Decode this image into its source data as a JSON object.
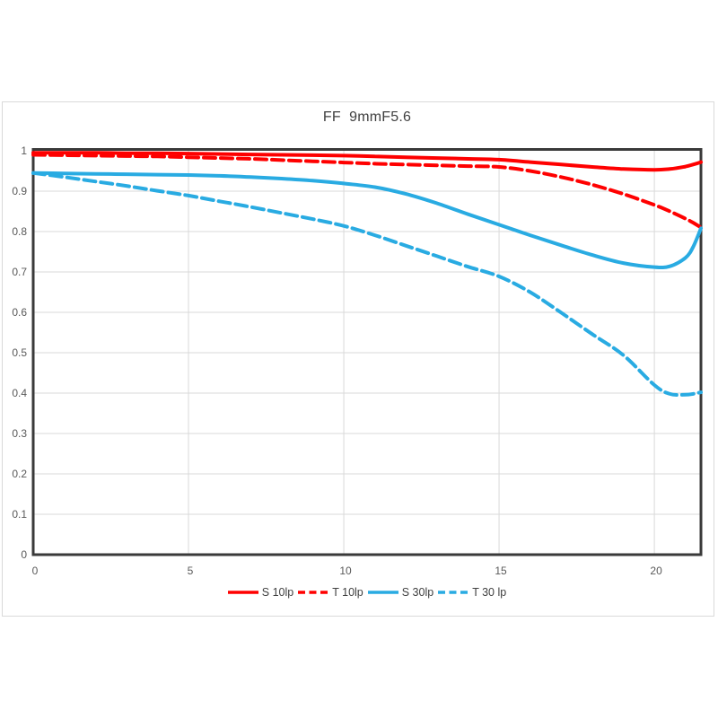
{
  "page": {
    "background": "#ffffff",
    "panel_border_color": "#d9d9d9"
  },
  "chart_data": {
    "type": "line",
    "title": "FF  9mmF5.6",
    "xlabel": "",
    "ylabel": "",
    "xlim": [
      0,
      21.5
    ],
    "ylim": [
      0,
      1
    ],
    "x_ticks": [
      0,
      5,
      10,
      15,
      20
    ],
    "y_ticks": [
      "0",
      "0.1",
      "0.2",
      "0.3",
      "0.4",
      "0.5",
      "0.6",
      "0.7",
      "0.8",
      "0.9",
      "1"
    ],
    "grid": true,
    "legend_position": "bottom",
    "colors": {
      "red": "#ff0000",
      "blue": "#29abe2",
      "axis_border": "#3a3a3a",
      "gridline": "#d9d9d9",
      "tick_label": "#595959",
      "title_text": "#404040"
    },
    "x": [
      0,
      1,
      2,
      3,
      4,
      5,
      6,
      7,
      8,
      9,
      10,
      11,
      12,
      13,
      14,
      15,
      16,
      17,
      18,
      19,
      20,
      20.5,
      21,
      21.25,
      21.5
    ],
    "series": [
      {
        "name": "S 10lp",
        "color": "#ff0000",
        "style": "solid",
        "values": [
          0.995,
          0.995,
          0.995,
          0.994,
          0.994,
          0.993,
          0.992,
          0.991,
          0.99,
          0.989,
          0.988,
          0.986,
          0.984,
          0.982,
          0.98,
          0.978,
          0.972,
          0.966,
          0.96,
          0.955,
          0.953,
          0.955,
          0.961,
          0.966,
          0.972
        ]
      },
      {
        "name": "T 10lp",
        "color": "#ff0000",
        "style": "dashed",
        "values": [
          0.99,
          0.989,
          0.988,
          0.987,
          0.986,
          0.984,
          0.982,
          0.98,
          0.977,
          0.974,
          0.971,
          0.968,
          0.966,
          0.964,
          0.962,
          0.96,
          0.95,
          0.935,
          0.916,
          0.893,
          0.866,
          0.85,
          0.832,
          0.822,
          0.81
        ]
      },
      {
        "name": "S 30lp",
        "color": "#29abe2",
        "style": "solid",
        "values": [
          0.945,
          0.944,
          0.943,
          0.942,
          0.941,
          0.94,
          0.938,
          0.935,
          0.931,
          0.926,
          0.919,
          0.91,
          0.893,
          0.87,
          0.843,
          0.817,
          0.791,
          0.766,
          0.742,
          0.722,
          0.712,
          0.714,
          0.735,
          0.762,
          0.808
        ]
      },
      {
        "name": "T 30 lp",
        "color": "#29abe2",
        "style": "dashed",
        "values": [
          0.945,
          0.935,
          0.924,
          0.913,
          0.901,
          0.889,
          0.875,
          0.861,
          0.846,
          0.831,
          0.814,
          0.791,
          0.765,
          0.739,
          0.713,
          0.689,
          0.65,
          0.599,
          0.546,
          0.494,
          0.42,
          0.398,
          0.396,
          0.398,
          0.402
        ]
      }
    ]
  }
}
